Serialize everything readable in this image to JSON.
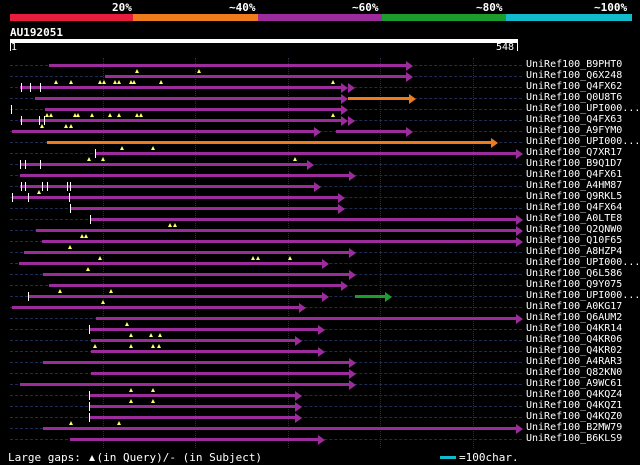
{
  "legend_scale": {
    "thresholds": [
      "20%",
      "~40%",
      "~60%",
      "~80%",
      "~100%"
    ],
    "colors": [
      "#e81c3c",
      "#ee7b1c",
      "#9c2c9c",
      "#1c9c2c",
      "#11bbcc"
    ]
  },
  "query": {
    "id": "AU192051",
    "start": "1",
    "end": "548"
  },
  "hits": [
    {
      "label": "UniRef100_B9PHT0",
      "color": "purple",
      "ticks": [],
      "segs": [
        [
          49,
          406
        ]
      ],
      "tris": []
    },
    {
      "label": "UniRef100_Q6X248",
      "color": "purple",
      "ticks": [],
      "segs": [
        [
          105,
          406
        ]
      ],
      "tris": [
        137,
        199
      ]
    },
    {
      "label": "UniRef100_Q4FX62",
      "color": "purple",
      "ticks": [
        21,
        30,
        40
      ],
      "segs": [
        [
          20,
          341
        ]
      ],
      "tris": [
        56,
        71,
        100,
        104,
        115,
        119,
        131,
        134,
        161,
        333
      ],
      "extra_arrows": [
        348
      ]
    },
    {
      "label": "UniRef100_Q0U8T6",
      "color": "purple",
      "ticks": [],
      "segs": [
        [
          35,
          341
        ]
      ],
      "tris": [],
      "extra": {
        "color": "orange",
        "x1": 348,
        "x2": 409
      }
    },
    {
      "label": "UniRef100_UPI000...",
      "color": "purple",
      "ticks": [
        11
      ],
      "segs": [
        [
          45,
          341
        ]
      ],
      "tris": []
    },
    {
      "label": "UniRef100_Q4FX63",
      "color": "purple",
      "ticks": [
        21,
        39,
        44
      ],
      "segs": [
        [
          20,
          341
        ]
      ],
      "tris": [
        47,
        51,
        75,
        78,
        92,
        110,
        119,
        137,
        141,
        333
      ],
      "extra_arrows": [
        348
      ]
    },
    {
      "label": "UniRef100_A9FYM0",
      "color": "purple",
      "ticks": [],
      "segs": [
        [
          12,
          314
        ],
        [
          336,
          406
        ]
      ],
      "tris": [
        42,
        66,
        71
      ]
    },
    {
      "label": "UniRef100_UPI000...",
      "color": "orange",
      "ticks": [],
      "segs": [
        [
          47,
          491
        ]
      ],
      "tris": [],
      "orange": true
    },
    {
      "label": "UniRef100_Q7XR17",
      "color": "purple",
      "ticks": [
        95
      ],
      "segs": [
        [
          95,
          516
        ]
      ],
      "tris": [
        122,
        153
      ]
    },
    {
      "label": "UniRef100_B9Q1D7",
      "color": "purple",
      "ticks": [
        20,
        25,
        40
      ],
      "segs": [
        [
          20,
          307
        ]
      ],
      "tris": [
        89,
        103,
        295
      ]
    },
    {
      "label": "UniRef100_Q4FX61",
      "color": "purple",
      "ticks": [],
      "segs": [
        [
          20,
          349
        ]
      ],
      "tris": []
    },
    {
      "label": "UniRef100_A4HM87",
      "color": "purple",
      "ticks": [
        21,
        25,
        42,
        47,
        67,
        70
      ],
      "segs": [
        [
          20,
          314
        ]
      ],
      "tris": []
    },
    {
      "label": "UniRef100_Q9RKL5",
      "color": "purple",
      "ticks": [
        12,
        28,
        69
      ],
      "segs": [
        [
          12,
          338
        ]
      ],
      "tris": [
        39
      ]
    },
    {
      "label": "UniRef100_Q4FX64",
      "color": "purple",
      "ticks": [
        70
      ],
      "segs": [
        [
          70,
          338
        ]
      ],
      "tris": []
    },
    {
      "label": "UniRef100_A0LTE8",
      "color": "purple",
      "ticks": [
        90
      ],
      "segs": [
        [
          90,
          516
        ]
      ],
      "tris": []
    },
    {
      "label": "UniRef100_Q2QNW0",
      "color": "purple",
      "ticks": [],
      "segs": [
        [
          36,
          516
        ]
      ],
      "tris": [
        170,
        175
      ]
    },
    {
      "label": "UniRef100_Q10F65",
      "color": "purple",
      "ticks": [],
      "segs": [
        [
          42,
          516
        ]
      ],
      "tris": [
        82,
        86
      ]
    },
    {
      "label": "UniRef100_A8HZP4",
      "color": "purple",
      "ticks": [],
      "segs": [
        [
          24,
          349
        ]
      ],
      "tris": [
        70
      ]
    },
    {
      "label": "UniRef100_UPI000...",
      "color": "purple",
      "ticks": [],
      "segs": [
        [
          19,
          322
        ]
      ],
      "tris": [
        100,
        253,
        258,
        290
      ]
    },
    {
      "label": "UniRef100_Q6L586",
      "color": "purple",
      "ticks": [],
      "segs": [
        [
          43,
          349
        ]
      ],
      "tris": [
        88
      ]
    },
    {
      "label": "UniRef100_Q9Y075",
      "color": "purple",
      "ticks": [],
      "segs": [
        [
          49,
          341
        ]
      ],
      "tris": []
    },
    {
      "label": "UniRef100_UPI000...",
      "color": "purple",
      "ticks": [
        28
      ],
      "segs": [
        [
          28,
          322
        ]
      ],
      "tris": [
        60,
        111
      ],
      "extra": {
        "color": "green",
        "x1": 355,
        "x2": 385
      }
    },
    {
      "label": "UniRef100_A0KG17",
      "color": "purple",
      "ticks": [],
      "segs": [
        [
          12,
          299
        ]
      ],
      "tris": [
        103
      ]
    },
    {
      "label": "UniRef100_Q6AUM2",
      "color": "purple",
      "ticks": [],
      "segs": [
        [
          96,
          516
        ]
      ],
      "tris": []
    },
    {
      "label": "UniRef100_Q4KR14",
      "color": "purple",
      "ticks": [
        89
      ],
      "segs": [
        [
          89,
          318
        ]
      ],
      "tris": [
        127
      ]
    },
    {
      "label": "UniRef100_Q4KR06",
      "color": "purple",
      "ticks": [],
      "segs": [
        [
          91,
          295
        ]
      ],
      "tris": [
        131,
        151,
        160
      ]
    },
    {
      "label": "UniRef100_Q4KR02",
      "color": "purple",
      "ticks": [],
      "segs": [
        [
          91,
          318
        ]
      ],
      "tris": [
        95,
        131,
        153,
        159
      ]
    },
    {
      "label": "UniRef100_A4RAR3",
      "color": "purple",
      "ticks": [],
      "segs": [
        [
          43,
          349
        ]
      ],
      "tris": []
    },
    {
      "label": "UniRef100_Q82KN0",
      "color": "purple",
      "ticks": [],
      "segs": [
        [
          91,
          349
        ]
      ],
      "tris": []
    },
    {
      "label": "UniRef100_A9WC61",
      "color": "purple",
      "ticks": [],
      "segs": [
        [
          20,
          349
        ]
      ],
      "tris": []
    },
    {
      "label": "UniRef100_Q4KQZ4",
      "color": "purple",
      "ticks": [
        89
      ],
      "segs": [
        [
          89,
          295
        ]
      ],
      "tris": [
        131,
        153
      ]
    },
    {
      "label": "UniRef100_Q4KQZ1",
      "color": "purple",
      "ticks": [
        89
      ],
      "segs": [
        [
          89,
          295
        ]
      ],
      "tris": [
        131,
        153
      ]
    },
    {
      "label": "UniRef100_Q4KQZ0",
      "color": "purple",
      "ticks": [
        89
      ],
      "segs": [
        [
          89,
          295
        ]
      ],
      "tris": []
    },
    {
      "label": "UniRef100_B2MW79",
      "color": "purple",
      "ticks": [],
      "segs": [
        [
          43,
          516
        ]
      ],
      "tris": [
        71,
        119
      ]
    },
    {
      "label": "UniRef100_B6KLS9",
      "color": "purple",
      "ticks": [],
      "segs": [
        [
          70,
          318
        ]
      ],
      "tris": []
    }
  ],
  "legend": {
    "text_a": "Large gaps:",
    "text_b": "(in Query)/",
    "text_c": "- (in Subject)",
    "scale": "=100char."
  }
}
